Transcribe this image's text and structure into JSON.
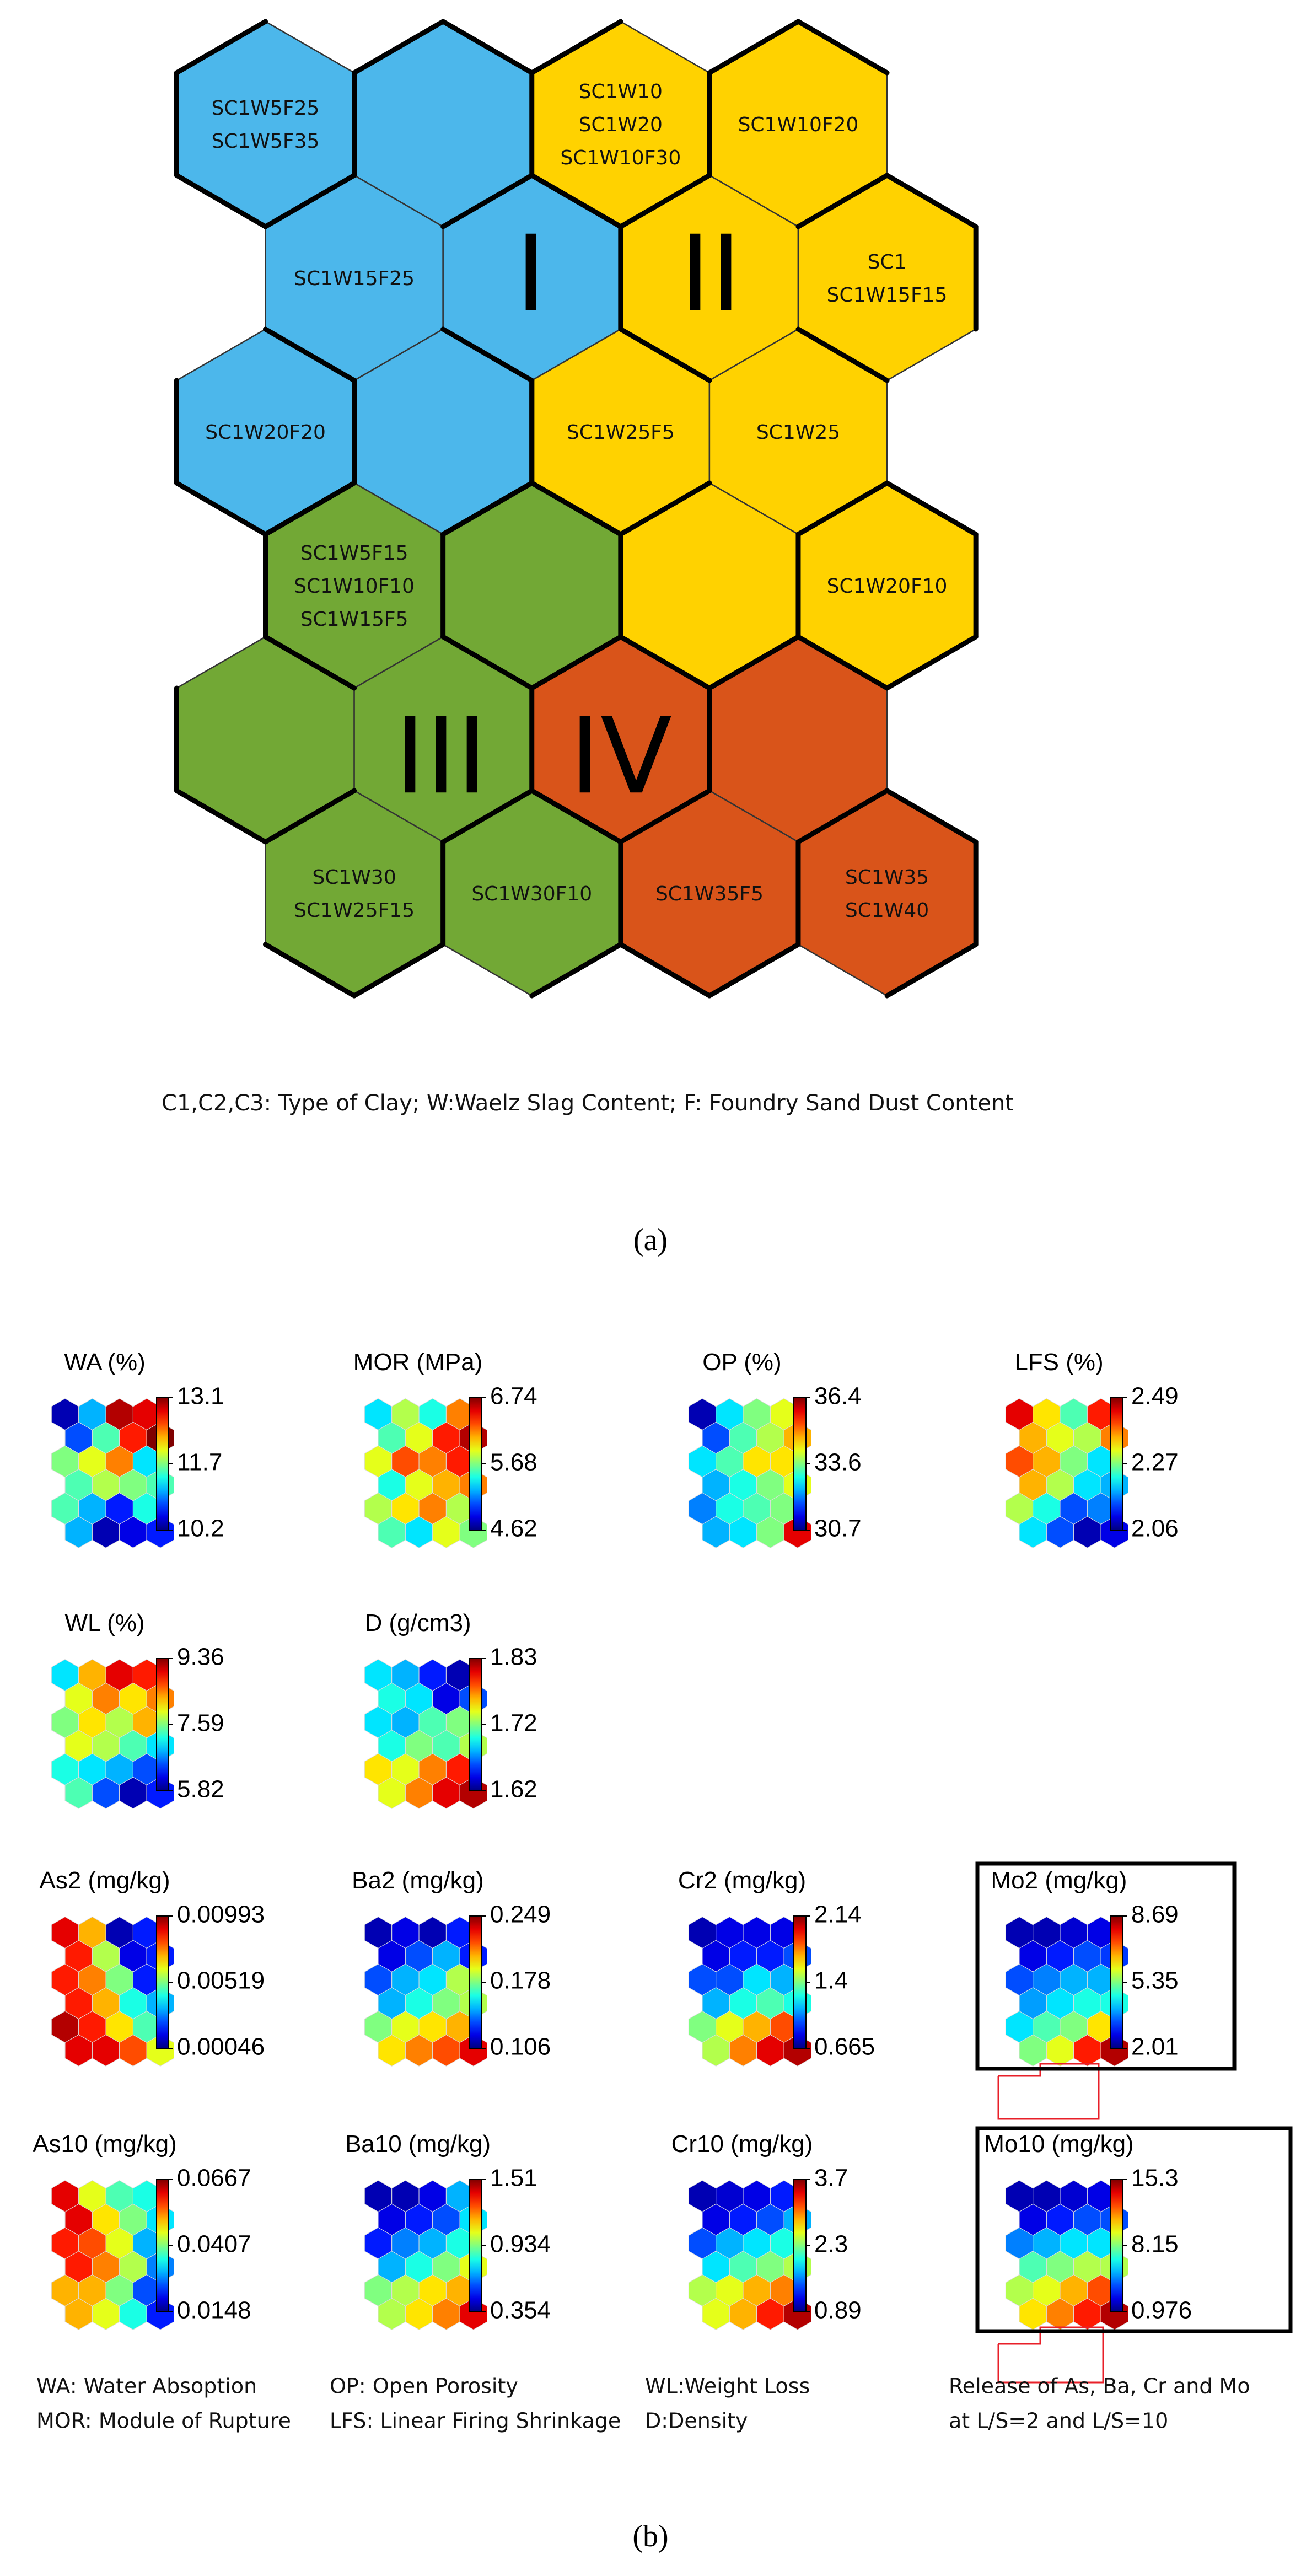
{
  "figure_a": {
    "regions": [
      {
        "numeral": "I",
        "color": "#4CB7EB"
      },
      {
        "numeral": "II",
        "color": "#FFD200"
      },
      {
        "numeral": "III",
        "color": "#72A835"
      },
      {
        "numeral": "IV",
        "color": "#D9541A"
      }
    ],
    "hex_labels": [
      [
        "SC1W5F25",
        "SC1W5F35"
      ],
      [
        "SC1W10",
        "SC1W20",
        "SC1W10F30"
      ],
      [
        "SC1W10F20"
      ],
      [
        "SC1W15F25"
      ],
      [
        "SC1",
        "SC1W15F15"
      ],
      [
        "SC1W20F20"
      ],
      [
        "SC1W25F5"
      ],
      [
        "SC1W25"
      ],
      [
        "SC1W5F15",
        "SC1W10F10",
        "SC1W15F5"
      ],
      [
        "SC1W20F10"
      ],
      [
        "SC1W30",
        "SC1W25F15"
      ],
      [
        "SC1W30F10"
      ],
      [
        "SC1W35F5"
      ],
      [
        "SC1W35",
        "SC1W40"
      ]
    ],
    "caption": "C1,C2,C3: Type of Clay; W:Waelz Slag Content; F: Foundry Sand Dust Content",
    "panel_label": "(a)"
  },
  "figure_b": {
    "panels": [
      {
        "title": "WA (%)",
        "max": "13.1",
        "mid": "11.7",
        "min": "10.2"
      },
      {
        "title": "MOR (MPa)",
        "max": "6.74",
        "mid": "5.68",
        "min": "4.62"
      },
      {
        "title": "OP (%)",
        "max": "36.4",
        "mid": "33.6",
        "min": "30.7"
      },
      {
        "title": "LFS (%)",
        "max": "2.49",
        "mid": "2.27",
        "min": "2.06"
      },
      {
        "title": "WL (%)",
        "max": "9.36",
        "mid": "7.59",
        "min": "5.82"
      },
      {
        "title": "D (g/cm3)",
        "max": "1.83",
        "mid": "1.72",
        "min": "1.62"
      },
      {
        "title": "As2 (mg/kg)",
        "max": "0.00993",
        "mid": "0.00519",
        "min": "0.00046"
      },
      {
        "title": "Ba2 (mg/kg)",
        "max": "0.249",
        "mid": "0.178",
        "min": "0.106"
      },
      {
        "title": "Cr2 (mg/kg)",
        "max": "2.14",
        "mid": "1.4",
        "min": "0.665"
      },
      {
        "title": "Mo2 (mg/kg)",
        "max": "8.69",
        "mid": "5.35",
        "min": "2.01"
      },
      {
        "title": "As10 (mg/kg)",
        "max": "0.0667",
        "mid": "0.0407",
        "min": "0.0148"
      },
      {
        "title": "Ba10 (mg/kg)",
        "max": "1.51",
        "mid": "0.934",
        "min": "0.354"
      },
      {
        "title": "Cr10 (mg/kg)",
        "max": "3.7",
        "mid": "2.3",
        "min": "0.89"
      },
      {
        "title": "Mo10 (mg/kg)",
        "max": "15.3",
        "mid": "8.15",
        "min": "0.976"
      }
    ],
    "legend": {
      "wa": "WA: Water Absoption",
      "mor": "MOR: Module of Rupture",
      "op": "OP: Open Porosity",
      "lfs": "LFS: Linear Firing Shrinkage",
      "wl": "WL:Weight Loss",
      "d": "D:Density",
      "release_1": "Release of As, Ba, Cr and Mo",
      "release_2": "at L/S=2 and L/S=10"
    },
    "panel_label": "(b)"
  }
}
